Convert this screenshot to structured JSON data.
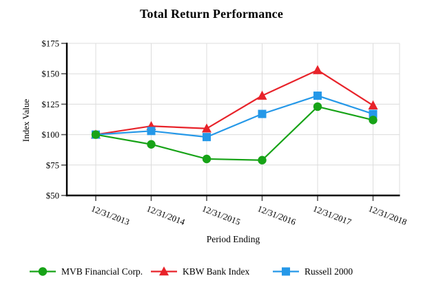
{
  "page": {
    "background": "#ffffff"
  },
  "chart_data": {
    "type": "line",
    "title": "Total Return Performance",
    "xlabel": "Period Ending",
    "ylabel": "Index Value",
    "categories": [
      "12/31/2013",
      "12/31/2014",
      "12/31/2015",
      "12/31/2016",
      "12/31/2017",
      "12/31/2018"
    ],
    "ylim": [
      50,
      175
    ],
    "yticks": [
      {
        "value": 50,
        "label": "$50"
      },
      {
        "value": 75,
        "label": "$75"
      },
      {
        "value": 100,
        "label": "$100"
      },
      {
        "value": 125,
        "label": "$125"
      },
      {
        "value": 150,
        "label": "$150"
      },
      {
        "value": 175,
        "label": "$175"
      }
    ],
    "grid": true,
    "grid_color": "#dcdcdc",
    "axis_color": "#000000",
    "tick_color": "#555555",
    "legend_position": "bottom",
    "series": [
      {
        "name": "MVB Financial Corp.",
        "marker": "circle",
        "color": "#17a317",
        "values": [
          100,
          92,
          80,
          79,
          123,
          112
        ]
      },
      {
        "name": "KBW Bank Index",
        "marker": "triangle",
        "color": "#e8232a",
        "values": [
          100,
          107,
          105,
          132,
          153,
          124
        ]
      },
      {
        "name": "Russell 2000",
        "marker": "square",
        "color": "#2598e8",
        "values": [
          100,
          103,
          98,
          117,
          132,
          117
        ]
      }
    ]
  }
}
